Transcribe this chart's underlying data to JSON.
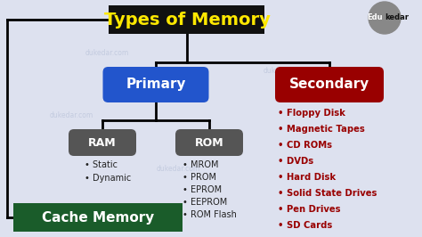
{
  "title": "Types of Memory",
  "title_color": "#FFE800",
  "title_bg": "#111111",
  "primary_label": "Primary",
  "primary_bg": "#2255CC",
  "secondary_label": "Secondary",
  "secondary_bg": "#990000",
  "ram_label": "RAM",
  "ram_bg": "#555555",
  "rom_label": "ROM",
  "rom_bg": "#555555",
  "cache_label": "Cache Memory",
  "cache_bg": "#1A5C2A",
  "ram_items": [
    "• Static",
    "• Dynamic"
  ],
  "rom_items": [
    "• MROM",
    "• PROM",
    "• EPROM",
    "• EEPROM",
    "• ROM Flash"
  ],
  "secondary_items": [
    "• Floppy Disk",
    "• Magnetic Tapes",
    "• CD ROMs",
    "• DVDs",
    "• Hard Disk",
    "• Solid State Drives",
    "• Pen Drives",
    "• SD Cards"
  ],
  "bg_color": "#DDE1EF",
  "text_white": "#FFFFFF",
  "text_dark": "#222222",
  "text_red": "#990000",
  "xlim": [
    0,
    474
  ],
  "ylim": [
    0,
    266
  ]
}
